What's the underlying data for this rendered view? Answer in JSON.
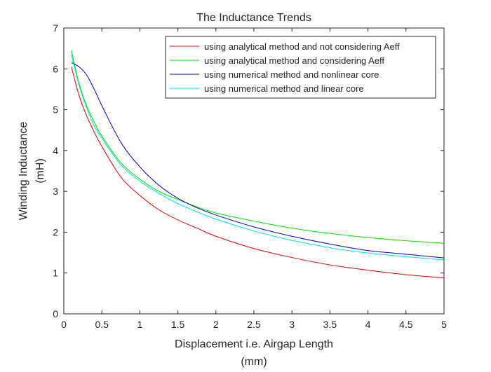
{
  "chart_data": {
    "type": "line",
    "title": "The Inductance Trends",
    "xlabel": [
      "Displacement i.e. Airgap Length",
      "(mm)"
    ],
    "ylabel": [
      "Winding Inductance",
      "(mH)"
    ],
    "xlim": [
      0,
      5
    ],
    "ylim": [
      0,
      7
    ],
    "xticks": [
      "0",
      "0.5",
      "1",
      "1.5",
      "2",
      "2.5",
      "3",
      "3.5",
      "4",
      "4.5",
      "5"
    ],
    "yticks": [
      "0",
      "1",
      "2",
      "3",
      "4",
      "5",
      "6",
      "7"
    ],
    "grid": false,
    "legend_position": "top-right",
    "x": [
      0.1,
      0.2,
      0.3,
      0.4,
      0.5,
      0.75,
      1.0,
      1.25,
      1.5,
      1.75,
      2.0,
      2.5,
      3.0,
      3.5,
      4.0,
      4.5,
      5.0
    ],
    "series": [
      {
        "name": "using analytical method and not considering Aeff",
        "color": "#e00000",
        "values": [
          6.05,
          5.35,
          4.85,
          4.45,
          4.1,
          3.35,
          2.9,
          2.55,
          2.3,
          2.1,
          1.9,
          1.6,
          1.38,
          1.2,
          1.07,
          0.96,
          0.88
        ]
      },
      {
        "name": "using analytical method and considering Aeff",
        "color": "#00e000",
        "values": [
          6.45,
          5.65,
          5.1,
          4.7,
          4.35,
          3.7,
          3.3,
          3.0,
          2.8,
          2.62,
          2.47,
          2.27,
          2.1,
          1.97,
          1.87,
          1.79,
          1.73
        ]
      },
      {
        "name": "using numerical method and nonlinear core",
        "color": "#0000c8",
        "values": [
          6.15,
          6.05,
          5.85,
          5.5,
          5.1,
          4.2,
          3.6,
          3.15,
          2.83,
          2.6,
          2.42,
          2.13,
          1.9,
          1.71,
          1.55,
          1.46,
          1.37
        ]
      },
      {
        "name": "using numerical method and linear core",
        "color": "#00e0e0",
        "values": [
          6.35,
          5.6,
          5.05,
          4.6,
          4.3,
          3.65,
          3.25,
          2.95,
          2.7,
          2.5,
          2.32,
          2.03,
          1.8,
          1.62,
          1.49,
          1.4,
          1.32
        ]
      }
    ]
  }
}
